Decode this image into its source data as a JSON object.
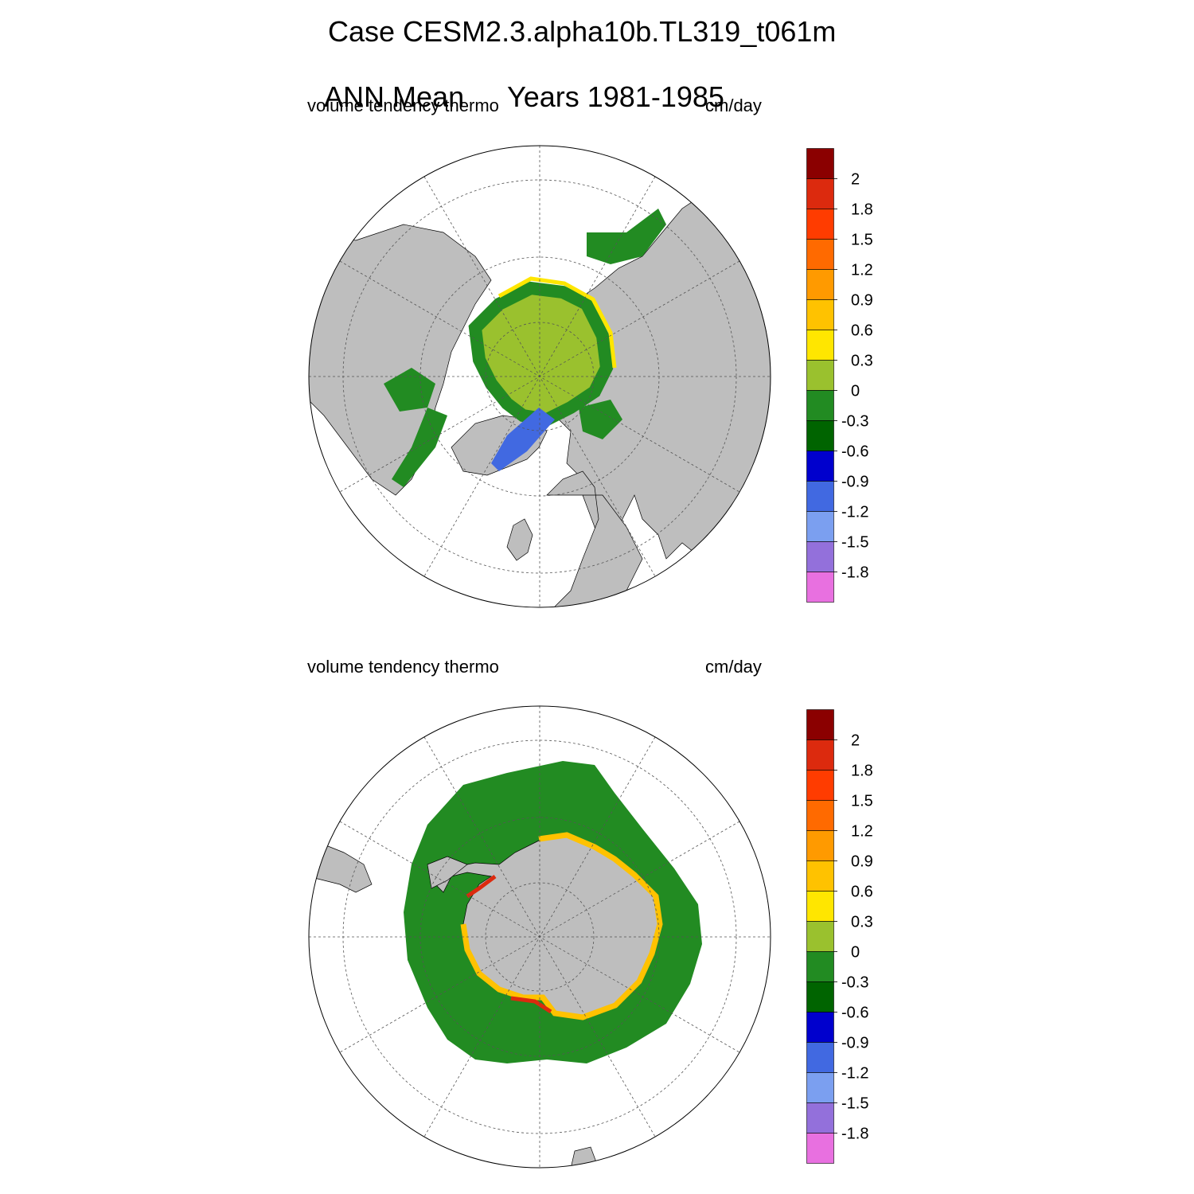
{
  "header": {
    "line1": "Case CESM2.3.alpha10b.TL319_t061m",
    "line2_period": "ANN Mean",
    "line2_years": "Years 1981-1985"
  },
  "panels": [
    {
      "id": "north",
      "variable": "volume tendency thermo",
      "units": "cm/day"
    },
    {
      "id": "south",
      "variable": "volume tendency thermo",
      "units": "cm/day"
    }
  ],
  "colorbar": {
    "labels": [
      "2",
      "1.8",
      "1.5",
      "1.2",
      "0.9",
      "0.6",
      "0.3",
      "0",
      "-0.3",
      "-0.6",
      "-0.9",
      "-1.2",
      "-1.5",
      "-1.8"
    ],
    "colors": [
      "#8b0000",
      "#dc2a0e",
      "#ff3c00",
      "#ff6a00",
      "#ff9a00",
      "#ffc200",
      "#ffe600",
      "#9ac12e",
      "#228b22",
      "#006400",
      "#0000cd",
      "#4169e1",
      "#7b9ff0",
      "#9370db",
      "#e870e0"
    ]
  },
  "map_style": {
    "land": "#bebebe",
    "ocean": "#ffffff"
  }
}
